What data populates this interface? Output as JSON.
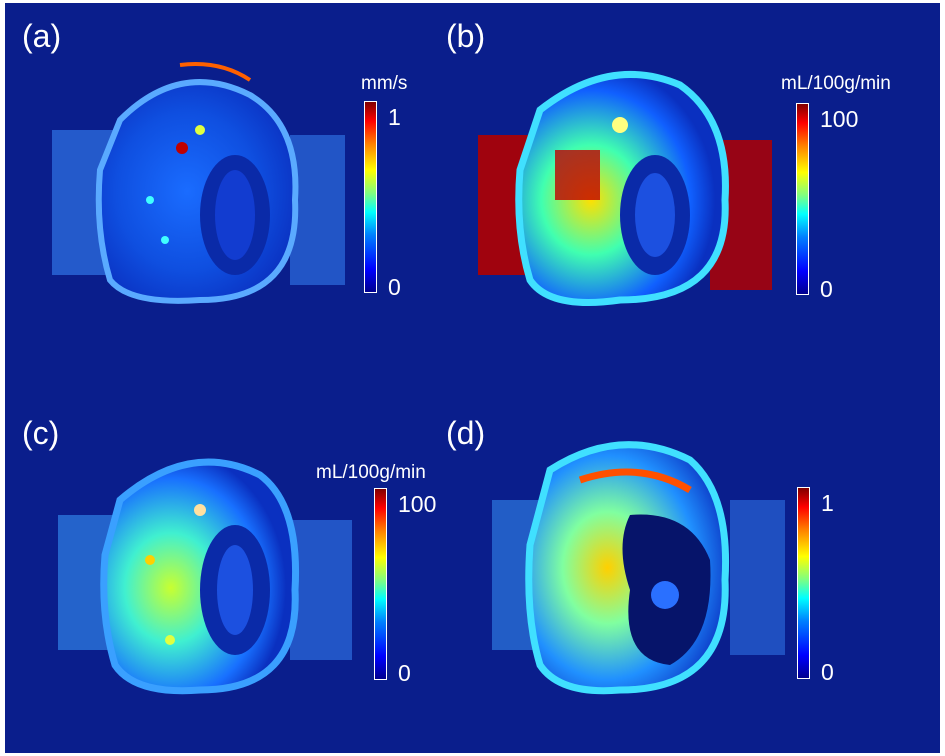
{
  "panels": [
    {
      "letter": "(a)",
      "unit": "mm/s",
      "max_label": "1",
      "min_label": "0"
    },
    {
      "letter": "(b)",
      "unit": "mL/100g/min",
      "max_label": "100",
      "min_label": "0"
    },
    {
      "letter": "(c)",
      "unit": "mL/100g/min",
      "max_label": "100",
      "min_label": "0"
    },
    {
      "letter": "(d)",
      "unit": "",
      "max_label": "1",
      "min_label": "0"
    }
  ],
  "colors": {
    "background": "#0a1e8c",
    "colormap": "jet"
  }
}
